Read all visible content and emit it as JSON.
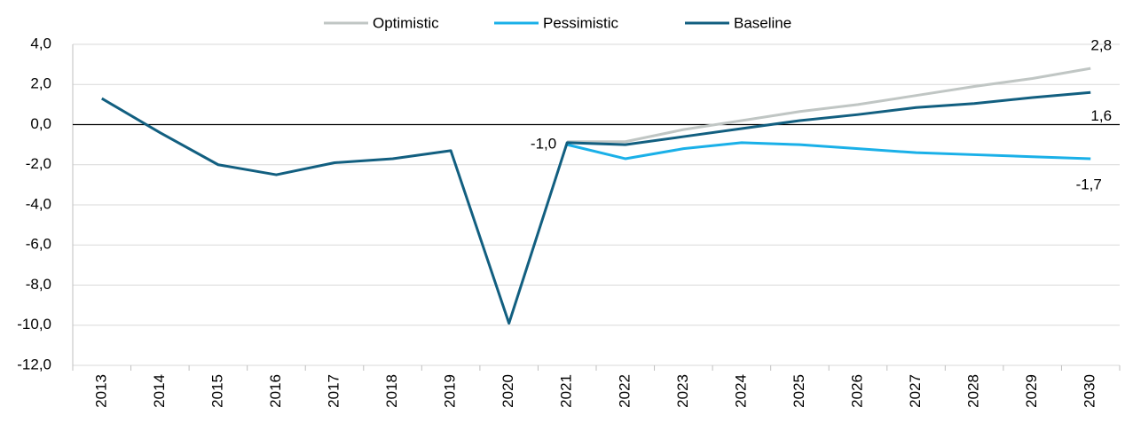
{
  "chart_data": {
    "type": "line",
    "categories": [
      "2013",
      "2014",
      "2015",
      "2016",
      "2017",
      "2018",
      "2019",
      "2020",
      "2021",
      "2022",
      "2023",
      "2024",
      "2025",
      "2026",
      "2027",
      "2028",
      "2029",
      "2030"
    ],
    "series": [
      {
        "name": "Optimistic",
        "color": "#c0c6c4",
        "values": [
          null,
          null,
          null,
          null,
          null,
          null,
          null,
          null,
          -0.85,
          -0.85,
          -0.25,
          0.2,
          0.65,
          1.0,
          1.45,
          1.9,
          2.3,
          2.8
        ],
        "value_labels": [
          null,
          null,
          null,
          null,
          null,
          null,
          null,
          null,
          null,
          null,
          null,
          null,
          null,
          null,
          null,
          null,
          null,
          "2,8"
        ]
      },
      {
        "name": "Pessimistic",
        "color": "#1ab0e8",
        "values": [
          null,
          null,
          null,
          null,
          null,
          null,
          null,
          null,
          -1.0,
          -1.7,
          -1.2,
          -0.9,
          -1.0,
          -1.2,
          -1.4,
          -1.5,
          -1.6,
          -1.7
        ],
        "value_labels": [
          null,
          null,
          null,
          null,
          null,
          null,
          null,
          null,
          "-1,0",
          null,
          null,
          null,
          null,
          null,
          null,
          null,
          null,
          "-1,7"
        ]
      },
      {
        "name": "Baseline",
        "color": "#125f80",
        "values": [
          1.3,
          -0.4,
          -2.0,
          -2.5,
          -1.9,
          -1.7,
          -1.3,
          -9.9,
          -0.9,
          -1.0,
          -0.6,
          -0.2,
          0.2,
          0.5,
          0.85,
          1.05,
          1.35,
          1.6
        ],
        "value_labels": [
          null,
          null,
          null,
          null,
          null,
          null,
          null,
          null,
          null,
          null,
          null,
          null,
          null,
          null,
          null,
          null,
          null,
          "1,6"
        ]
      }
    ],
    "ylim": [
      -12,
      4
    ],
    "yticks": [
      {
        "value": -12,
        "label": "-12,0"
      },
      {
        "value": -10,
        "label": "-10,0"
      },
      {
        "value": -8,
        "label": "-8,0"
      },
      {
        "value": -6,
        "label": "-6,0"
      },
      {
        "value": -4,
        "label": "-4,0"
      },
      {
        "value": -2,
        "label": "-2,0"
      },
      {
        "value": 0,
        "label": "0,0"
      },
      {
        "value": 2,
        "label": "2,0"
      },
      {
        "value": 4,
        "label": "4,0"
      }
    ],
    "grid": true,
    "legend": "top"
  }
}
